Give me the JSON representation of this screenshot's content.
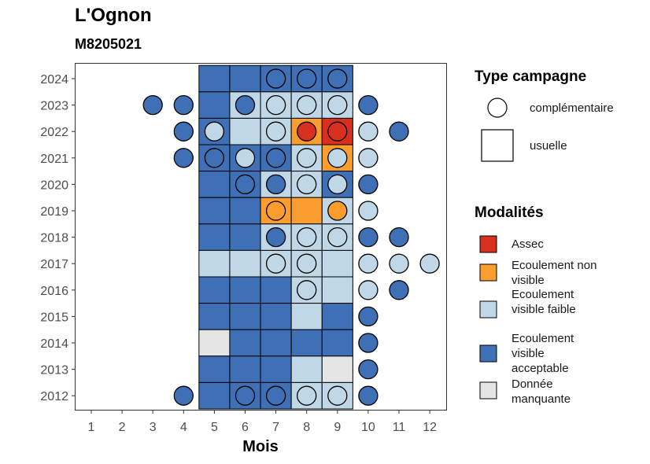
{
  "title": "L'Ognon",
  "subtitle": "M8205021",
  "chart_data": {
    "type": "heatmap",
    "xlabel": "Mois",
    "ylabel": "",
    "x": [
      1,
      2,
      3,
      4,
      5,
      6,
      7,
      8,
      9,
      10,
      11,
      12
    ],
    "y": [
      2012,
      2013,
      2014,
      2015,
      2016,
      2017,
      2018,
      2019,
      2020,
      2021,
      2022,
      2023,
      2024
    ],
    "legend_type": {
      "title": "Type campagne",
      "items": [
        {
          "key": "complementaire",
          "label": "complémentaire",
          "shape": "circle"
        },
        {
          "key": "usuelle",
          "label": "usuelle",
          "shape": "square"
        }
      ]
    },
    "legend_modalites": {
      "title": "Modalités",
      "items": [
        {
          "key": "assec",
          "label": "Assec",
          "color": "#d7301f"
        },
        {
          "key": "nonvisible",
          "label": "Ecoulement non visible",
          "color": "#fc9d30"
        },
        {
          "key": "faible",
          "label": "Ecoulement visible faible",
          "color": "#bfd7e6"
        },
        {
          "key": "acceptable",
          "label": "Ecoulement visible acceptable",
          "color": "#3f6fb5"
        },
        {
          "key": "manquante",
          "label": "Donnée manquante",
          "color": "#e5e5e5"
        }
      ]
    },
    "usuelle": [
      {
        "year": 2024,
        "months": [
          "acceptable",
          "acceptable",
          "acceptable",
          "acceptable",
          "acceptable"
        ]
      },
      {
        "year": 2023,
        "months": [
          "acceptable",
          "faible",
          "faible",
          "faible",
          "faible"
        ]
      },
      {
        "year": 2022,
        "months": [
          "acceptable",
          "faible",
          "faible",
          "nonvisible",
          "assec"
        ]
      },
      {
        "year": 2021,
        "months": [
          "acceptable",
          "acceptable",
          "acceptable",
          "faible",
          "nonvisible"
        ]
      },
      {
        "year": 2020,
        "months": [
          "acceptable",
          "acceptable",
          "faible",
          "faible",
          "acceptable"
        ]
      },
      {
        "year": 2019,
        "months": [
          "acceptable",
          "acceptable",
          "nonvisible",
          "nonvisible",
          "faible"
        ]
      },
      {
        "year": 2018,
        "months": [
          "acceptable",
          "acceptable",
          "faible",
          "faible",
          "faible"
        ]
      },
      {
        "year": 2017,
        "months": [
          "faible",
          "faible",
          "faible",
          "faible",
          "faible"
        ]
      },
      {
        "year": 2016,
        "months": [
          "acceptable",
          "acceptable",
          "acceptable",
          "faible",
          "faible"
        ]
      },
      {
        "year": 2015,
        "months": [
          "acceptable",
          "acceptable",
          "acceptable",
          "faible",
          "acceptable"
        ]
      },
      {
        "year": 2014,
        "months": [
          "manquante",
          "acceptable",
          "acceptable",
          "acceptable",
          "acceptable"
        ]
      },
      {
        "year": 2013,
        "months": [
          "acceptable",
          "acceptable",
          "acceptable",
          "faible",
          "manquante"
        ]
      },
      {
        "year": 2012,
        "months": [
          "acceptable",
          "acceptable",
          "acceptable",
          "faible",
          "faible"
        ]
      }
    ],
    "usuelle_months": [
      5,
      6,
      7,
      8,
      9
    ],
    "complementaire": [
      {
        "year": 2024,
        "month": 7,
        "value": "acceptable"
      },
      {
        "year": 2024,
        "month": 8,
        "value": "acceptable"
      },
      {
        "year": 2024,
        "month": 9,
        "value": "acceptable"
      },
      {
        "year": 2023,
        "month": 3,
        "value": "acceptable"
      },
      {
        "year": 2023,
        "month": 4,
        "value": "acceptable"
      },
      {
        "year": 2023,
        "month": 6,
        "value": "acceptable"
      },
      {
        "year": 2023,
        "month": 7,
        "value": "faible"
      },
      {
        "year": 2023,
        "month": 8,
        "value": "faible"
      },
      {
        "year": 2023,
        "month": 9,
        "value": "faible"
      },
      {
        "year": 2023,
        "month": 10,
        "value": "acceptable"
      },
      {
        "year": 2022,
        "month": 4,
        "value": "acceptable"
      },
      {
        "year": 2022,
        "month": 5,
        "value": "faible"
      },
      {
        "year": 2022,
        "month": 7,
        "value": "faible"
      },
      {
        "year": 2022,
        "month": 8,
        "value": "assec"
      },
      {
        "year": 2022,
        "month": 9,
        "value": "assec"
      },
      {
        "year": 2022,
        "month": 10,
        "value": "faible"
      },
      {
        "year": 2022,
        "month": 11,
        "value": "acceptable"
      },
      {
        "year": 2021,
        "month": 4,
        "value": "acceptable"
      },
      {
        "year": 2021,
        "month": 5,
        "value": "acceptable"
      },
      {
        "year": 2021,
        "month": 6,
        "value": "faible"
      },
      {
        "year": 2021,
        "month": 7,
        "value": "acceptable"
      },
      {
        "year": 2021,
        "month": 8,
        "value": "faible"
      },
      {
        "year": 2021,
        "month": 9,
        "value": "faible"
      },
      {
        "year": 2021,
        "month": 10,
        "value": "faible"
      },
      {
        "year": 2020,
        "month": 6,
        "value": "acceptable"
      },
      {
        "year": 2020,
        "month": 7,
        "value": "acceptable"
      },
      {
        "year": 2020,
        "month": 8,
        "value": "faible"
      },
      {
        "year": 2020,
        "month": 9,
        "value": "faible"
      },
      {
        "year": 2020,
        "month": 10,
        "value": "acceptable"
      },
      {
        "year": 2019,
        "month": 7,
        "value": "nonvisible"
      },
      {
        "year": 2019,
        "month": 9,
        "value": "nonvisible"
      },
      {
        "year": 2019,
        "month": 10,
        "value": "faible"
      },
      {
        "year": 2018,
        "month": 7,
        "value": "acceptable"
      },
      {
        "year": 2018,
        "month": 8,
        "value": "faible"
      },
      {
        "year": 2018,
        "month": 9,
        "value": "faible"
      },
      {
        "year": 2018,
        "month": 10,
        "value": "acceptable"
      },
      {
        "year": 2018,
        "month": 11,
        "value": "acceptable"
      },
      {
        "year": 2017,
        "month": 7,
        "value": "faible"
      },
      {
        "year": 2017,
        "month": 8,
        "value": "faible"
      },
      {
        "year": 2017,
        "month": 10,
        "value": "faible"
      },
      {
        "year": 2017,
        "month": 11,
        "value": "faible"
      },
      {
        "year": 2017,
        "month": 12,
        "value": "faible"
      },
      {
        "year": 2016,
        "month": 8,
        "value": "faible"
      },
      {
        "year": 2016,
        "month": 10,
        "value": "faible"
      },
      {
        "year": 2016,
        "month": 11,
        "value": "acceptable"
      },
      {
        "year": 2015,
        "month": 10,
        "value": "acceptable"
      },
      {
        "year": 2014,
        "month": 10,
        "value": "acceptable"
      },
      {
        "year": 2013,
        "month": 10,
        "value": "acceptable"
      },
      {
        "year": 2012,
        "month": 4,
        "value": "acceptable"
      },
      {
        "year": 2012,
        "month": 6,
        "value": "acceptable"
      },
      {
        "year": 2012,
        "month": 7,
        "value": "acceptable"
      },
      {
        "year": 2012,
        "month": 8,
        "value": "faible"
      },
      {
        "year": 2012,
        "month": 9,
        "value": "faible"
      },
      {
        "year": 2012,
        "month": 10,
        "value": "acceptable"
      }
    ]
  }
}
